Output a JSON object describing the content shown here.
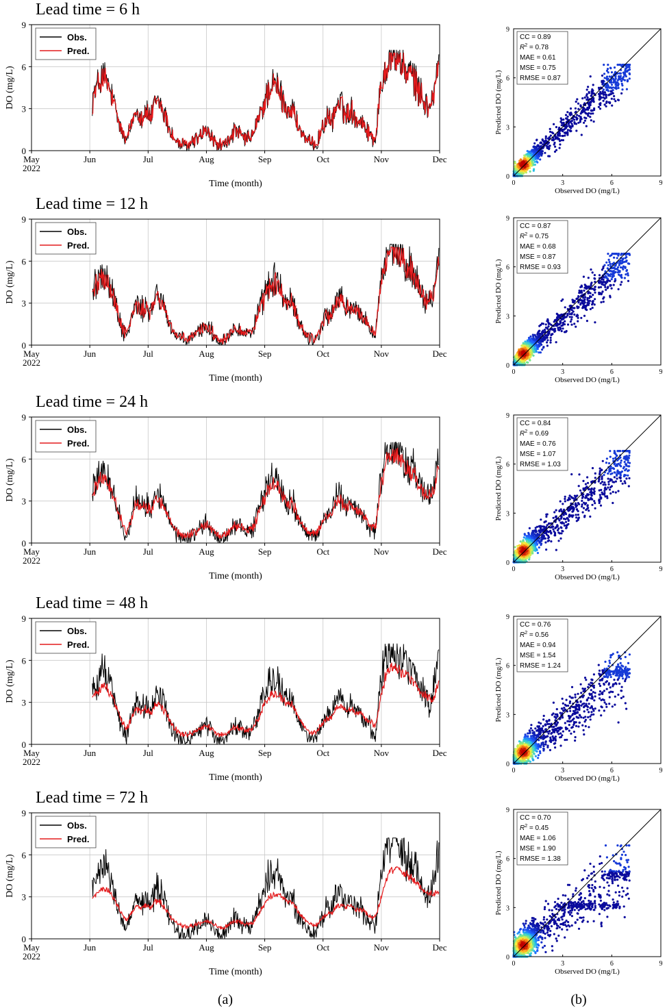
{
  "colors": {
    "observed": "#000000",
    "predicted": "#e41a1c",
    "grid": "#c8c8c8",
    "axis": "#000000",
    "density_low": "#0a0a9c",
    "density_high": "#c00000"
  },
  "panel_labels": [
    "(a)",
    "(b)"
  ],
  "chart_data": [
    {
      "type": "line",
      "title": "Lead time = 6 h",
      "xlabel": "Time (month)",
      "ylabel": "DO (mg/L)",
      "ylim": [
        0,
        9
      ],
      "yticks": [
        "0",
        "3",
        "6",
        "9"
      ],
      "xticks": [
        "May",
        "Jun",
        "Jul",
        "Aug",
        "Sep",
        "Oct",
        "Nov",
        "Dec"
      ],
      "x_year_label": "2022",
      "legend": [
        "Obs.",
        "Pred."
      ],
      "series": [
        {
          "name": "Obs.",
          "values": [
            3.8,
            4.6,
            5.4,
            4.9,
            3.9,
            2.6,
            1.3,
            0.6,
            1.9,
            3.1,
            2.4,
            2.8,
            2.3,
            3.6,
            3.4,
            2.4,
            1.4,
            0.7,
            0.4,
            0.3,
            0.4,
            0.8,
            1.0,
            1.4,
            1.2,
            0.6,
            0.3,
            0.4,
            0.7,
            1.4,
            1.2,
            0.9,
            0.8,
            1.2,
            2.2,
            3.2,
            4.3,
            4.7,
            4.5,
            3.6,
            2.9,
            3.1,
            1.9,
            1.2,
            0.6,
            0.4,
            0.5,
            1.5,
            2.3,
            2.0,
            3.3,
            3.4,
            2.5,
            3.0,
            2.3,
            2.2,
            1.7,
            1.1,
            0.8,
            4.2,
            6.0,
            6.9,
            6.8,
            6.5,
            5.8,
            5.6,
            5.1,
            4.2,
            3.5,
            3.0,
            4.2,
            6.3
          ]
        },
        {
          "name": "Pred.",
          "values": [
            3.7,
            4.5,
            5.2,
            4.8,
            3.8,
            2.6,
            1.4,
            0.7,
            1.9,
            3.0,
            2.4,
            2.7,
            2.3,
            3.5,
            3.3,
            2.4,
            1.4,
            0.7,
            0.5,
            0.4,
            0.5,
            0.8,
            1.0,
            1.4,
            1.2,
            0.6,
            0.4,
            0.5,
            0.7,
            1.4,
            1.2,
            0.9,
            0.8,
            1.2,
            2.2,
            3.1,
            4.2,
            4.6,
            4.4,
            3.5,
            2.9,
            3.0,
            1.9,
            1.2,
            0.6,
            0.5,
            0.6,
            1.5,
            2.3,
            2.0,
            3.2,
            3.3,
            2.5,
            3.0,
            2.3,
            2.2,
            1.7,
            1.1,
            0.9,
            4.1,
            5.9,
            6.8,
            6.7,
            6.4,
            5.7,
            5.5,
            5.0,
            4.1,
            3.5,
            3.0,
            4.1,
            6.1
          ]
        }
      ]
    },
    {
      "type": "scatter",
      "xlabel": "Observed DO (mg/L)",
      "ylabel": "Predicted DO (mg/L)",
      "xlim": [
        0,
        9
      ],
      "ylim": [
        0,
        9
      ],
      "ticks": [
        "0",
        "3",
        "6",
        "9"
      ],
      "stats": {
        "cc": "CC = 0.89",
        "r2_value": "= 0.78",
        "mae": "MAE = 0.61",
        "mse": "MSE = 0.75",
        "rmse": "RMSE = 0.87"
      },
      "r2_symbol": "R",
      "r2_exp": "2",
      "spread": 0.55,
      "shrink": 0.93
    },
    {
      "type": "line",
      "title": "Lead time = 12 h",
      "xlabel": "Time (month)",
      "ylabel": "DO (mg/L)",
      "ylim": [
        0,
        9
      ],
      "yticks": [
        "0",
        "3",
        "6",
        "9"
      ],
      "xticks": [
        "May",
        "Jun",
        "Jul",
        "Aug",
        "Sep",
        "Oct",
        "Nov",
        "Dec"
      ],
      "x_year_label": "2022",
      "legend": [
        "Obs.",
        "Pred."
      ],
      "series": [
        {
          "name": "Obs.",
          "values": [
            3.8,
            4.6,
            5.4,
            4.9,
            3.9,
            2.6,
            1.3,
            0.6,
            1.9,
            3.1,
            2.4,
            2.8,
            2.3,
            3.6,
            3.4,
            2.4,
            1.4,
            0.7,
            0.4,
            0.3,
            0.4,
            0.8,
            1.0,
            1.4,
            1.2,
            0.6,
            0.3,
            0.4,
            0.7,
            1.4,
            1.2,
            0.9,
            0.8,
            1.2,
            2.2,
            3.2,
            4.3,
            4.7,
            4.5,
            3.6,
            2.9,
            3.1,
            1.9,
            1.2,
            0.6,
            0.4,
            0.5,
            1.5,
            2.3,
            2.0,
            3.3,
            3.4,
            2.5,
            3.0,
            2.3,
            2.2,
            1.7,
            1.1,
            0.8,
            4.2,
            6.0,
            6.9,
            6.8,
            6.5,
            5.8,
            5.6,
            5.1,
            4.2,
            3.5,
            3.0,
            4.2,
            6.3
          ]
        },
        {
          "name": "Pred.",
          "values": [
            3.7,
            4.4,
            5.1,
            4.7,
            3.8,
            2.6,
            1.4,
            0.8,
            1.9,
            2.9,
            2.4,
            2.7,
            2.3,
            3.4,
            3.2,
            2.4,
            1.5,
            0.8,
            0.5,
            0.4,
            0.5,
            0.8,
            1.0,
            1.4,
            1.2,
            0.7,
            0.4,
            0.5,
            0.7,
            1.3,
            1.2,
            0.9,
            0.9,
            1.2,
            2.1,
            3.0,
            4.0,
            4.4,
            4.3,
            3.5,
            2.9,
            3.0,
            1.9,
            1.2,
            0.7,
            0.5,
            0.6,
            1.5,
            2.2,
            2.0,
            3.1,
            3.2,
            2.5,
            2.9,
            2.3,
            2.2,
            1.7,
            1.2,
            0.9,
            4.0,
            5.8,
            6.7,
            6.6,
            6.3,
            5.7,
            5.5,
            5.0,
            4.1,
            3.5,
            3.1,
            4.0,
            6.0
          ]
        }
      ]
    },
    {
      "type": "scatter",
      "xlabel": "Observed DO (mg/L)",
      "ylabel": "Predicted DO (mg/L)",
      "xlim": [
        0,
        9
      ],
      "ylim": [
        0,
        9
      ],
      "ticks": [
        "0",
        "3",
        "6",
        "9"
      ],
      "stats": {
        "cc": "CC = 0.87",
        "r2_value": "= 0.75",
        "mae": "MAE = 0.68",
        "mse": "MSE = 0.87",
        "rmse": "RMSE = 0.93"
      },
      "r2_symbol": "R",
      "r2_exp": "2",
      "spread": 0.62,
      "shrink": 0.92
    },
    {
      "type": "line",
      "title": "Lead time = 24 h",
      "xlabel": "Time (month)",
      "ylabel": "DO (mg/L)",
      "ylim": [
        0,
        9
      ],
      "yticks": [
        "0",
        "3",
        "6",
        "9"
      ],
      "xticks": [
        "May",
        "Jun",
        "Jul",
        "Aug",
        "Sep",
        "Oct",
        "Nov",
        "Dec"
      ],
      "x_year_label": "2022",
      "legend": [
        "Obs.",
        "Pred."
      ],
      "series": [
        {
          "name": "Obs.",
          "values": [
            3.8,
            4.6,
            5.4,
            4.9,
            3.9,
            2.6,
            1.3,
            0.6,
            1.9,
            3.1,
            2.4,
            2.8,
            2.3,
            3.6,
            3.4,
            2.4,
            1.4,
            0.7,
            0.4,
            0.3,
            0.4,
            0.8,
            1.0,
            1.4,
            1.2,
            0.6,
            0.3,
            0.4,
            0.7,
            1.4,
            1.2,
            0.9,
            0.8,
            1.2,
            2.2,
            3.2,
            4.3,
            4.7,
            4.5,
            3.6,
            2.9,
            3.1,
            1.9,
            1.2,
            0.6,
            0.4,
            0.5,
            1.5,
            2.3,
            2.0,
            3.3,
            3.4,
            2.5,
            3.0,
            2.3,
            2.2,
            1.7,
            1.1,
            0.8,
            4.2,
            6.0,
            6.9,
            6.8,
            6.5,
            5.8,
            5.6,
            5.1,
            4.2,
            3.5,
            3.0,
            4.2,
            6.3
          ]
        },
        {
          "name": "Pred.",
          "values": [
            3.5,
            4.2,
            4.8,
            4.5,
            3.7,
            2.6,
            1.5,
            0.9,
            1.8,
            2.8,
            2.4,
            2.6,
            2.3,
            3.2,
            3.0,
            2.3,
            1.5,
            0.9,
            0.6,
            0.5,
            0.6,
            0.8,
            1.0,
            1.3,
            1.2,
            0.8,
            0.5,
            0.6,
            0.8,
            1.3,
            1.2,
            1.0,
            0.9,
            1.2,
            2.0,
            2.9,
            3.8,
            4.2,
            4.1,
            3.4,
            2.9,
            2.9,
            2.0,
            1.3,
            0.8,
            0.6,
            0.7,
            1.4,
            2.1,
            2.0,
            2.9,
            3.0,
            2.5,
            2.8,
            2.3,
            2.2,
            1.8,
            1.3,
            1.1,
            3.7,
            5.5,
            6.3,
            6.3,
            6.0,
            5.5,
            5.3,
            4.8,
            4.0,
            3.5,
            3.2,
            3.8,
            5.5
          ]
        }
      ]
    },
    {
      "type": "scatter",
      "xlabel": "Observed DO (mg/L)",
      "ylabel": "Predicted DO (mg/L)",
      "xlim": [
        0,
        9
      ],
      "ylim": [
        0,
        9
      ],
      "ticks": [
        "0",
        "3",
        "6",
        "9"
      ],
      "stats": {
        "cc": "CC = 0.84",
        "r2_value": "= 0.69",
        "mae": "MAE = 0.76",
        "mse": "MSE = 1.07",
        "rmse": "RMSE = 1.03"
      },
      "r2_symbol": "R",
      "r2_exp": "2",
      "spread": 0.72,
      "shrink": 0.88
    },
    {
      "type": "line",
      "title": "Lead time = 48 h",
      "xlabel": "Time (month)",
      "ylabel": "DO (mg/L)",
      "ylim": [
        0,
        9
      ],
      "yticks": [
        "0",
        "3",
        "6",
        "9"
      ],
      "xticks": [
        "May",
        "Jun",
        "Jul",
        "Aug",
        "Sep",
        "Oct",
        "Nov",
        "Dec"
      ],
      "x_year_label": "2022",
      "legend": [
        "Obs.",
        "Pred."
      ],
      "series": [
        {
          "name": "Obs.",
          "values": [
            3.8,
            4.6,
            5.4,
            4.9,
            3.9,
            2.6,
            1.3,
            0.6,
            1.9,
            3.1,
            2.4,
            2.8,
            2.3,
            3.6,
            3.4,
            2.4,
            1.4,
            0.7,
            0.4,
            0.3,
            0.4,
            0.8,
            1.0,
            1.4,
            1.2,
            0.6,
            0.3,
            0.4,
            0.7,
            1.4,
            1.2,
            0.9,
            0.8,
            1.2,
            2.2,
            3.2,
            4.3,
            4.7,
            4.5,
            3.6,
            2.9,
            3.1,
            1.9,
            1.2,
            0.6,
            0.4,
            0.5,
            1.5,
            2.3,
            2.0,
            3.3,
            3.4,
            2.5,
            3.0,
            2.3,
            2.2,
            1.7,
            1.1,
            0.8,
            4.2,
            6.0,
            6.9,
            6.8,
            6.5,
            5.8,
            5.6,
            5.1,
            4.2,
            3.5,
            3.0,
            4.2,
            6.3
          ]
        },
        {
          "name": "Pred.",
          "values": [
            3.2,
            3.8,
            4.2,
            4.0,
            3.4,
            2.6,
            1.7,
            1.1,
            1.8,
            2.6,
            2.3,
            2.5,
            2.2,
            2.9,
            2.8,
            2.2,
            1.6,
            1.1,
            0.8,
            0.7,
            0.8,
            0.9,
            1.1,
            1.3,
            1.2,
            0.9,
            0.7,
            0.7,
            0.9,
            1.2,
            1.2,
            1.0,
            1.0,
            1.2,
            1.8,
            2.6,
            3.3,
            3.6,
            3.6,
            3.2,
            2.8,
            2.8,
            2.1,
            1.5,
            1.0,
            0.8,
            0.9,
            1.4,
            1.9,
            1.9,
            2.6,
            2.7,
            2.4,
            2.6,
            2.2,
            2.2,
            1.9,
            1.5,
            1.4,
            3.2,
            4.7,
            5.5,
            5.6,
            5.4,
            5.0,
            4.8,
            4.4,
            3.8,
            3.5,
            3.3,
            3.4,
            4.4
          ]
        }
      ]
    },
    {
      "type": "scatter",
      "xlabel": "Observed DO (mg/L)",
      "ylabel": "Predicted DO (mg/L)",
      "xlim": [
        0,
        9
      ],
      "ylim": [
        0,
        9
      ],
      "ticks": [
        "0",
        "3",
        "6",
        "9"
      ],
      "stats": {
        "cc": "CC = 0.76",
        "r2_value": "= 0.56",
        "mae": "MAE = 0.94",
        "mse": "MSE = 1.54",
        "rmse": "RMSE = 1.24"
      },
      "r2_symbol": "R",
      "r2_exp": "2",
      "spread": 0.85,
      "shrink": 0.8
    },
    {
      "type": "line",
      "title": "Lead time = 72 h",
      "xlabel": "Time (month)",
      "ylabel": "DO (mg/L)",
      "ylim": [
        0,
        9
      ],
      "yticks": [
        "0",
        "3",
        "6",
        "9"
      ],
      "xticks": [
        "May",
        "Jun",
        "Jul",
        "Aug",
        "Sep",
        "Oct",
        "Nov",
        "Dec"
      ],
      "x_year_label": "2022",
      "legend": [
        "Obs.",
        "Pred."
      ],
      "series": [
        {
          "name": "Obs.",
          "values": [
            3.8,
            4.6,
            5.4,
            4.9,
            3.9,
            2.6,
            1.3,
            0.6,
            1.9,
            3.1,
            2.4,
            2.8,
            2.3,
            3.6,
            3.4,
            2.4,
            1.4,
            0.7,
            0.4,
            0.3,
            0.4,
            0.8,
            1.0,
            1.4,
            1.2,
            0.6,
            0.3,
            0.4,
            0.7,
            1.4,
            1.2,
            0.9,
            0.8,
            1.2,
            2.2,
            3.2,
            4.3,
            4.7,
            4.5,
            3.6,
            2.9,
            3.1,
            1.9,
            1.2,
            0.6,
            0.4,
            0.5,
            1.5,
            2.3,
            2.0,
            3.3,
            3.4,
            2.5,
            3.0,
            2.3,
            2.2,
            1.7,
            1.1,
            0.8,
            4.2,
            6.0,
            6.9,
            6.8,
            6.5,
            5.8,
            5.6,
            5.1,
            4.2,
            3.5,
            3.0,
            4.2,
            6.3
          ]
        },
        {
          "name": "Pred.",
          "values": [
            2.8,
            3.3,
            3.6,
            3.5,
            3.1,
            2.5,
            1.8,
            1.3,
            1.8,
            2.4,
            2.2,
            2.4,
            2.2,
            2.7,
            2.6,
            2.1,
            1.6,
            1.2,
            1.0,
            0.9,
            0.9,
            1.0,
            1.1,
            1.3,
            1.2,
            1.0,
            0.8,
            0.8,
            1.0,
            1.2,
            1.2,
            1.1,
            1.0,
            1.2,
            1.7,
            2.3,
            2.9,
            3.1,
            3.2,
            2.9,
            2.7,
            2.6,
            2.1,
            1.6,
            1.2,
            1.0,
            1.0,
            1.4,
            1.8,
            1.8,
            2.3,
            2.4,
            2.3,
            2.4,
            2.1,
            2.1,
            1.9,
            1.6,
            1.5,
            2.7,
            4.0,
            4.8,
            5.0,
            4.9,
            4.6,
            4.5,
            4.2,
            3.7,
            3.4,
            3.3,
            3.2,
            3.4
          ]
        }
      ]
    },
    {
      "type": "scatter",
      "xlabel": "Observed DO (mg/L)",
      "ylabel": "Predicted DO (mg/L)",
      "xlim": [
        0,
        9
      ],
      "ylim": [
        0,
        9
      ],
      "ticks": [
        "0",
        "3",
        "6",
        "9"
      ],
      "stats": {
        "cc": "CC = 0.70",
        "r2_value": "= 0.45",
        "mae": "MAE = 1.06",
        "mse": "MSE = 1.90",
        "rmse": "RMSE = 1.38"
      },
      "r2_symbol": "R",
      "r2_exp": "2",
      "spread": 0.95,
      "shrink": 0.72
    }
  ]
}
